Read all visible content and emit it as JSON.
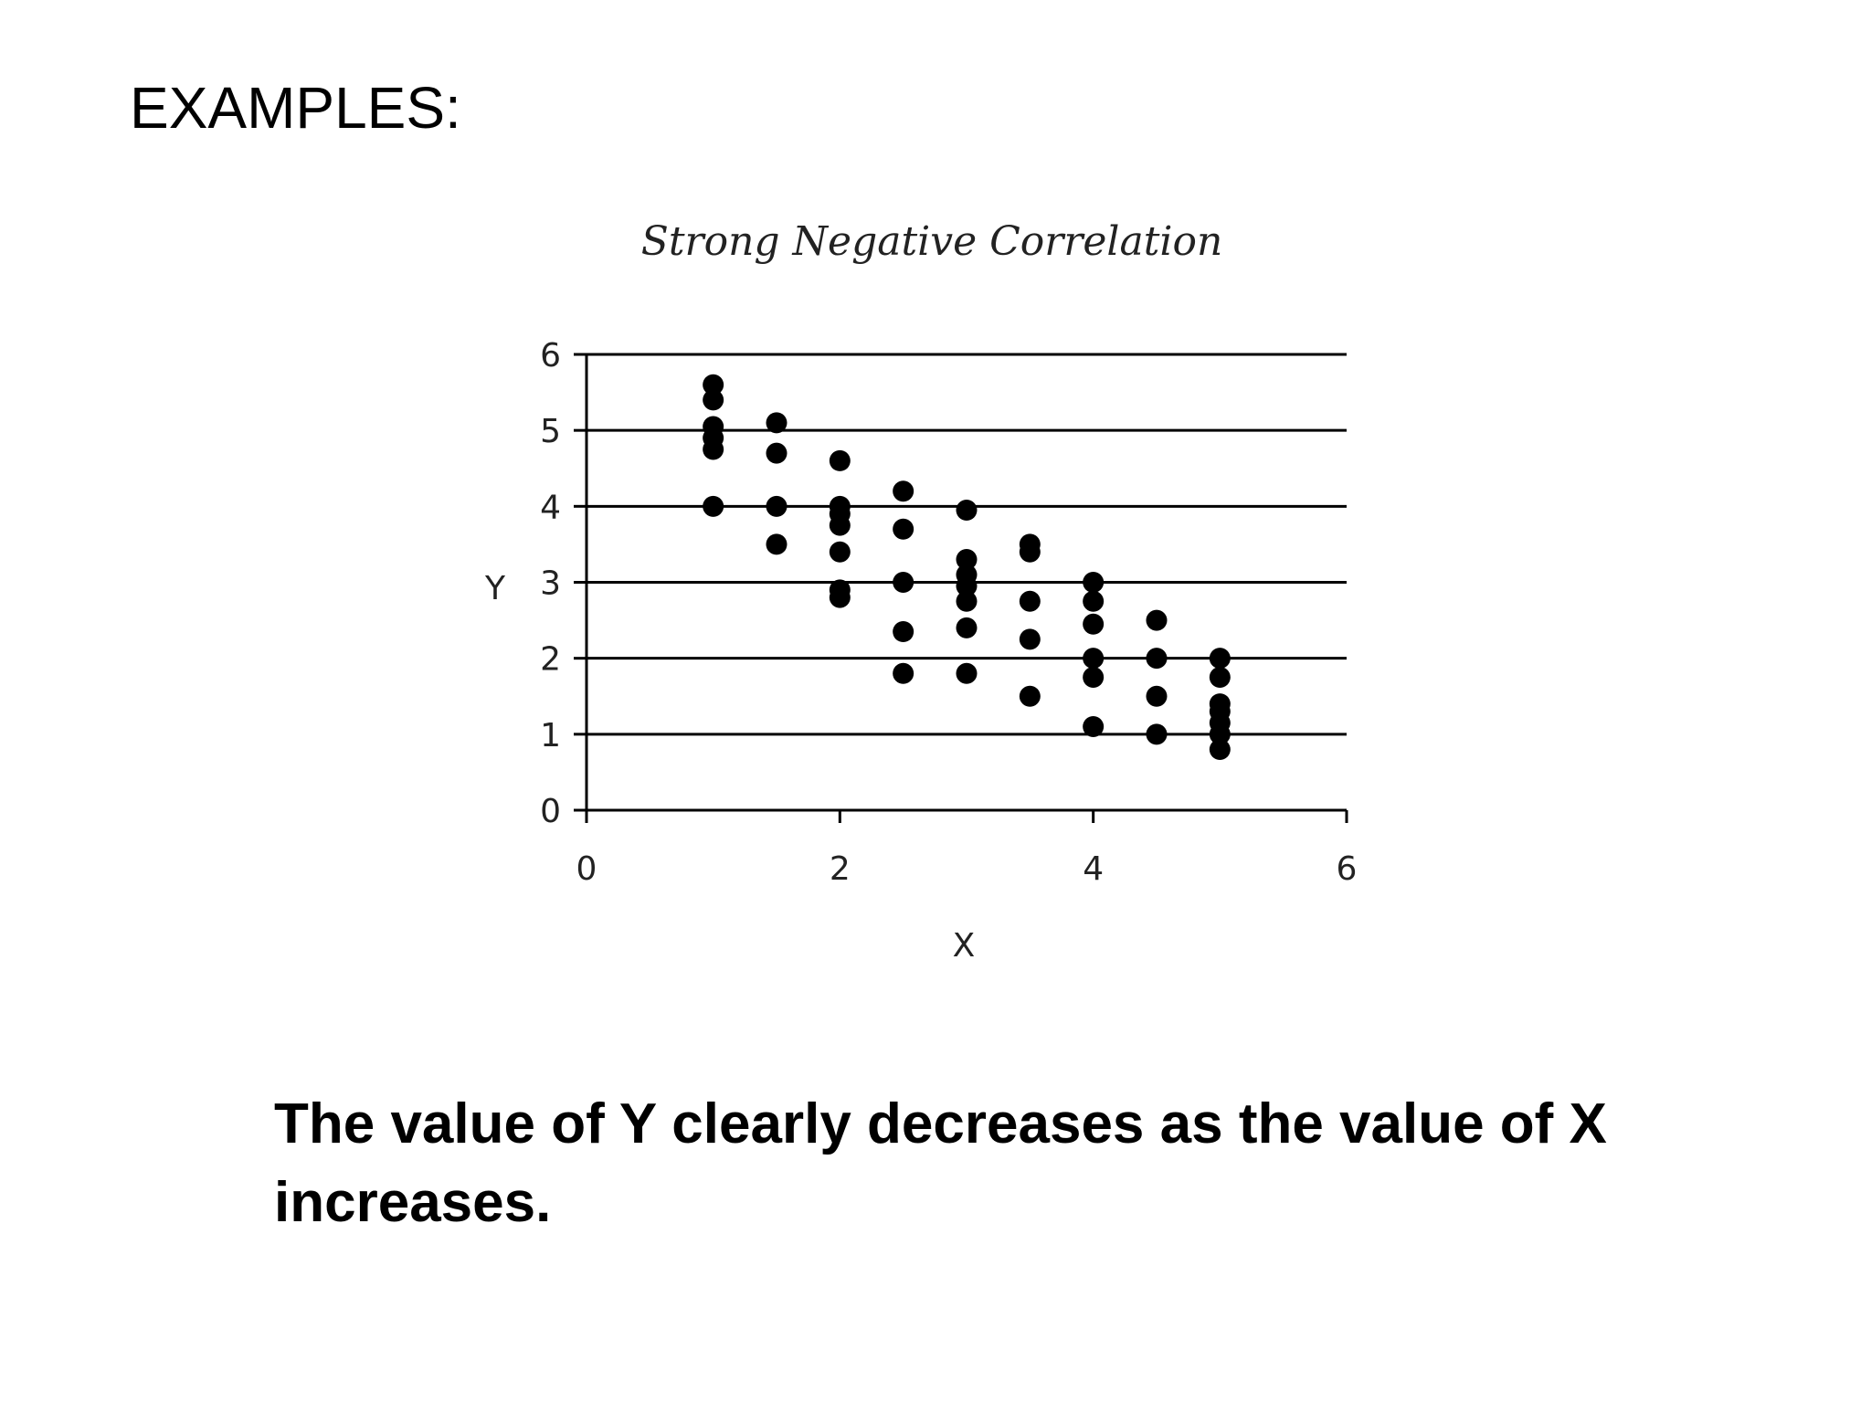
{
  "slide": {
    "heading": "EXAMPLES:",
    "caption": "The value of Y clearly decreases as the value of X increases."
  },
  "chart_data": {
    "type": "scatter",
    "title": "Strong Negative Correlation",
    "xlabel": "X",
    "ylabel": "Y",
    "xlim": [
      0,
      6
    ],
    "ylim": [
      0,
      6
    ],
    "xticks": [
      0,
      2,
      4,
      6
    ],
    "yticks": [
      0,
      1,
      2,
      3,
      4,
      5,
      6
    ],
    "grid": "horizontal",
    "legend": "none",
    "marker_color": "#000000",
    "points": [
      {
        "x": 1,
        "y": 5.6
      },
      {
        "x": 1,
        "y": 5.4
      },
      {
        "x": 1,
        "y": 5.05
      },
      {
        "x": 1,
        "y": 4.9
      },
      {
        "x": 1,
        "y": 4.75
      },
      {
        "x": 1,
        "y": 4.0
      },
      {
        "x": 1.5,
        "y": 5.1
      },
      {
        "x": 1.5,
        "y": 4.7
      },
      {
        "x": 1.5,
        "y": 4.0
      },
      {
        "x": 1.5,
        "y": 3.5
      },
      {
        "x": 2,
        "y": 4.6
      },
      {
        "x": 2,
        "y": 4.0
      },
      {
        "x": 2,
        "y": 3.9
      },
      {
        "x": 2,
        "y": 3.75
      },
      {
        "x": 2,
        "y": 3.4
      },
      {
        "x": 2,
        "y": 2.9
      },
      {
        "x": 2,
        "y": 2.8
      },
      {
        "x": 2.5,
        "y": 4.2
      },
      {
        "x": 2.5,
        "y": 3.7
      },
      {
        "x": 2.5,
        "y": 3.0
      },
      {
        "x": 2.5,
        "y": 2.35
      },
      {
        "x": 2.5,
        "y": 1.8
      },
      {
        "x": 3,
        "y": 3.95
      },
      {
        "x": 3,
        "y": 3.3
      },
      {
        "x": 3,
        "y": 3.1
      },
      {
        "x": 3,
        "y": 2.95
      },
      {
        "x": 3,
        "y": 2.75
      },
      {
        "x": 3,
        "y": 2.4
      },
      {
        "x": 3,
        "y": 1.8
      },
      {
        "x": 3.5,
        "y": 3.5
      },
      {
        "x": 3.5,
        "y": 3.4
      },
      {
        "x": 3.5,
        "y": 2.75
      },
      {
        "x": 3.5,
        "y": 2.25
      },
      {
        "x": 3.5,
        "y": 1.5
      },
      {
        "x": 4,
        "y": 3.0
      },
      {
        "x": 4,
        "y": 2.75
      },
      {
        "x": 4,
        "y": 2.45
      },
      {
        "x": 4,
        "y": 2.0
      },
      {
        "x": 4,
        "y": 1.75
      },
      {
        "x": 4,
        "y": 1.1
      },
      {
        "x": 4.5,
        "y": 2.5
      },
      {
        "x": 4.5,
        "y": 2.0
      },
      {
        "x": 4.5,
        "y": 1.5
      },
      {
        "x": 4.5,
        "y": 1.0
      },
      {
        "x": 5,
        "y": 2.0
      },
      {
        "x": 5,
        "y": 1.75
      },
      {
        "x": 5,
        "y": 1.4
      },
      {
        "x": 5,
        "y": 1.3
      },
      {
        "x": 5,
        "y": 1.15
      },
      {
        "x": 5,
        "y": 1.0
      },
      {
        "x": 5,
        "y": 0.8
      }
    ]
  }
}
